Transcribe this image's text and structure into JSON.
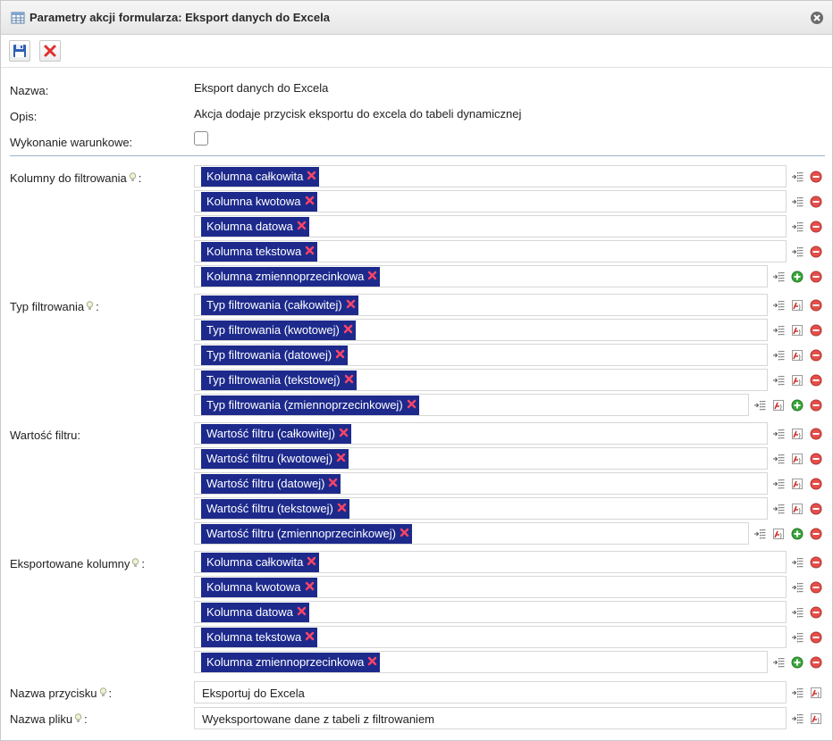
{
  "window": {
    "title": "Parametry akcji formularza: Eksport danych do Excela"
  },
  "toolbar": {
    "save_icon": "save-icon",
    "cancel_icon": "cancel-icon"
  },
  "fields": {
    "name": {
      "label": "Nazwa:",
      "value": "Eksport danych do Excela"
    },
    "description": {
      "label": "Opis:",
      "value": "Akcja dodaje przycisk eksportu do excela do tabeli dynamicznej"
    },
    "conditional": {
      "label": "Wykonanie warunkowe:",
      "checked": false
    }
  },
  "sections": [
    {
      "label": "Kolumny do filtrowania",
      "hint": true,
      "has_edit": false,
      "items": [
        "Kolumna całkowita",
        "Kolumna kwotowa",
        "Kolumna datowa",
        "Kolumna tekstowa",
        "Kolumna zmiennoprzecinkowa"
      ]
    },
    {
      "label": "Typ filtrowania",
      "hint": true,
      "has_edit": true,
      "items": [
        "Typ filtrowania (całkowitej)",
        "Typ filtrowania (kwotowej)",
        "Typ filtrowania (datowej)",
        "Typ filtrowania (tekstowej)",
        "Typ filtrowania (zmiennoprzecinkowej)"
      ]
    },
    {
      "label": "Wartość filtru:",
      "hint": false,
      "has_edit": true,
      "items": [
        "Wartość filtru (całkowitej)",
        "Wartość filtru (kwotowej)",
        "Wartość filtru (datowej)",
        "Wartość filtru (tekstowej)",
        "Wartość filtru (zmiennoprzecinkowej)"
      ]
    },
    {
      "label": "Eksportowane kolumny",
      "hint": true,
      "has_edit": false,
      "items": [
        "Kolumna całkowita",
        "Kolumna kwotowa",
        "Kolumna datowa",
        "Kolumna tekstowa",
        "Kolumna zmiennoprzecinkowa"
      ]
    }
  ],
  "text_fields": [
    {
      "label": "Nazwa przycisku",
      "value": "Eksportuj do Excela"
    },
    {
      "label": "Nazwa pliku",
      "value": "Wyeksportowane dane z tabeli z filtrowaniem"
    }
  ],
  "colors": {
    "tag_bg": "#1d2a8c",
    "remove": "#e2504c",
    "add": "#3aa63a",
    "divider": "#9fb3c8"
  }
}
